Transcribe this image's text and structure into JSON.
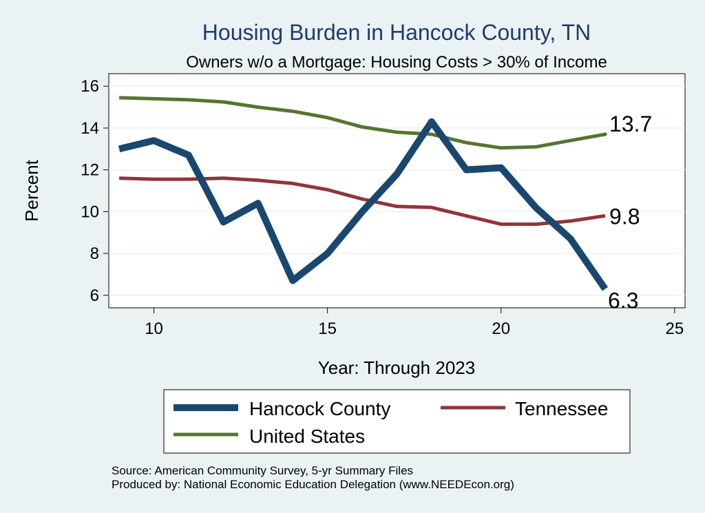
{
  "chart_data": {
    "type": "line",
    "title": "Housing Burden in Hancock County, TN",
    "subtitle": "Owners w/o a Mortgage: Housing Costs > 30% of Income",
    "xlabel": "Year: Through 2023",
    "ylabel": "Percent",
    "xlim": [
      8.7,
      25.3
    ],
    "ylim": [
      5.4,
      16.6
    ],
    "xticks": [
      10,
      15,
      20,
      25
    ],
    "yticks": [
      6,
      8,
      10,
      12,
      14,
      16
    ],
    "grid": true,
    "x": [
      9,
      10,
      11,
      12,
      13,
      14,
      15,
      16,
      17,
      18,
      19,
      20,
      21,
      22,
      23
    ],
    "series": [
      {
        "name": "Hancock County",
        "color": "#1a476f",
        "values": [
          13.0,
          13.4,
          12.7,
          9.5,
          10.4,
          6.7,
          8.0,
          10.0,
          11.8,
          14.3,
          12.0,
          12.1,
          10.2,
          8.7,
          6.3
        ],
        "end_label": "6.3"
      },
      {
        "name": "Tennessee",
        "color": "#90353b",
        "values": [
          11.6,
          11.55,
          11.55,
          11.6,
          11.5,
          11.35,
          11.05,
          10.6,
          10.25,
          10.2,
          9.8,
          9.4,
          9.4,
          9.55,
          9.8
        ],
        "end_label": "9.8"
      },
      {
        "name": "United States",
        "color": "#55752f",
        "values": [
          15.45,
          15.4,
          15.35,
          15.25,
          15.0,
          14.8,
          14.5,
          14.05,
          13.8,
          13.7,
          13.3,
          13.05,
          13.1,
          13.4,
          13.7
        ],
        "end_label": "13.7"
      }
    ],
    "legend": [
      "Hancock County",
      "Tennessee",
      "United States"
    ],
    "legend_position": "bottom"
  },
  "source_note": "Source: American Community Survey, 5-yr Summary Files",
  "producer_note": "Produced by: National Economic Education Delegation (www.NEEDEcon.org)"
}
